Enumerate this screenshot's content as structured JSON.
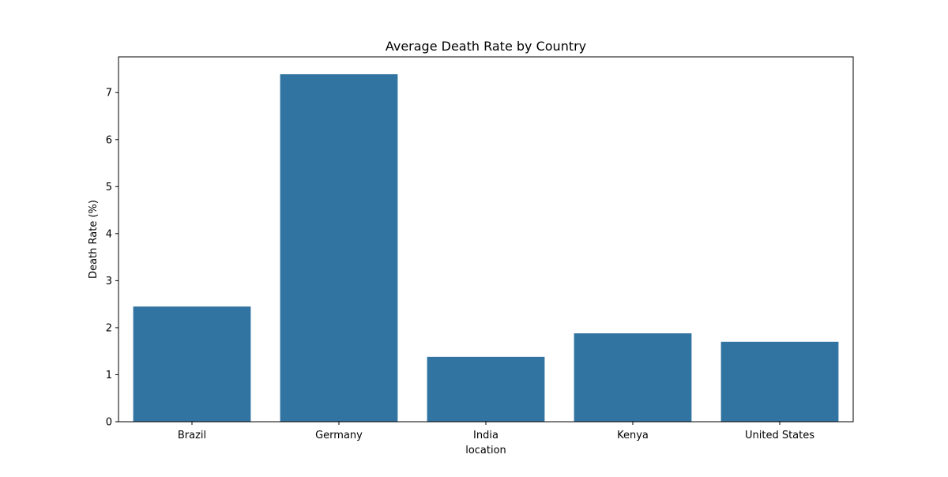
{
  "chart_data": {
    "type": "bar",
    "title": "Average Death Rate by Country",
    "xlabel": "location",
    "ylabel": "Death Rate (%)",
    "categories": [
      "Brazil",
      "Germany",
      "India",
      "Kenya",
      "United States"
    ],
    "values": [
      2.45,
      7.39,
      1.38,
      1.88,
      1.7
    ],
    "ylim": [
      0,
      7.76
    ],
    "yticks": [
      "0",
      "1",
      "2",
      "3",
      "4",
      "5",
      "6",
      "7"
    ],
    "bar_color": "#3274a1",
    "grid": false,
    "legend": "none"
  }
}
